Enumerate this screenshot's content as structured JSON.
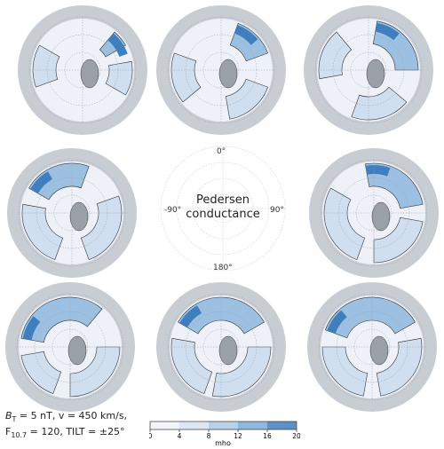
{
  "center": {
    "title_line1": "Pedersen",
    "title_line2": "conductance",
    "angles": {
      "top": "0°",
      "left": "-90°",
      "right": "90°",
      "bottom": "180°"
    }
  },
  "params": {
    "bt_prefix": "B",
    "bt_sub": "T",
    "bt_rest": " = 5 nT, v = 450 km/s,",
    "f_prefix": "F",
    "f_sub": "10.7",
    "f_rest": " = 120, TILT = ±25°"
  },
  "colorbar": {
    "ticks": [
      "0",
      "4",
      "8",
      "12",
      "16",
      "20"
    ],
    "unit": "mho",
    "colors": [
      "#f2f6fb",
      "#dbe7f4",
      "#b9d2ea",
      "#8fb7dc",
      "#5a93c8",
      "#2a64a6"
    ]
  },
  "palette": {
    "outer_ring": "#c8ccd3",
    "inner_disk": "#eef2f8",
    "contour_light": "#cfdff0",
    "contour_mid": "#9cc0e1",
    "contour_dark": "#3f7fbf",
    "land_gray": "#9aa0a8"
  }
}
